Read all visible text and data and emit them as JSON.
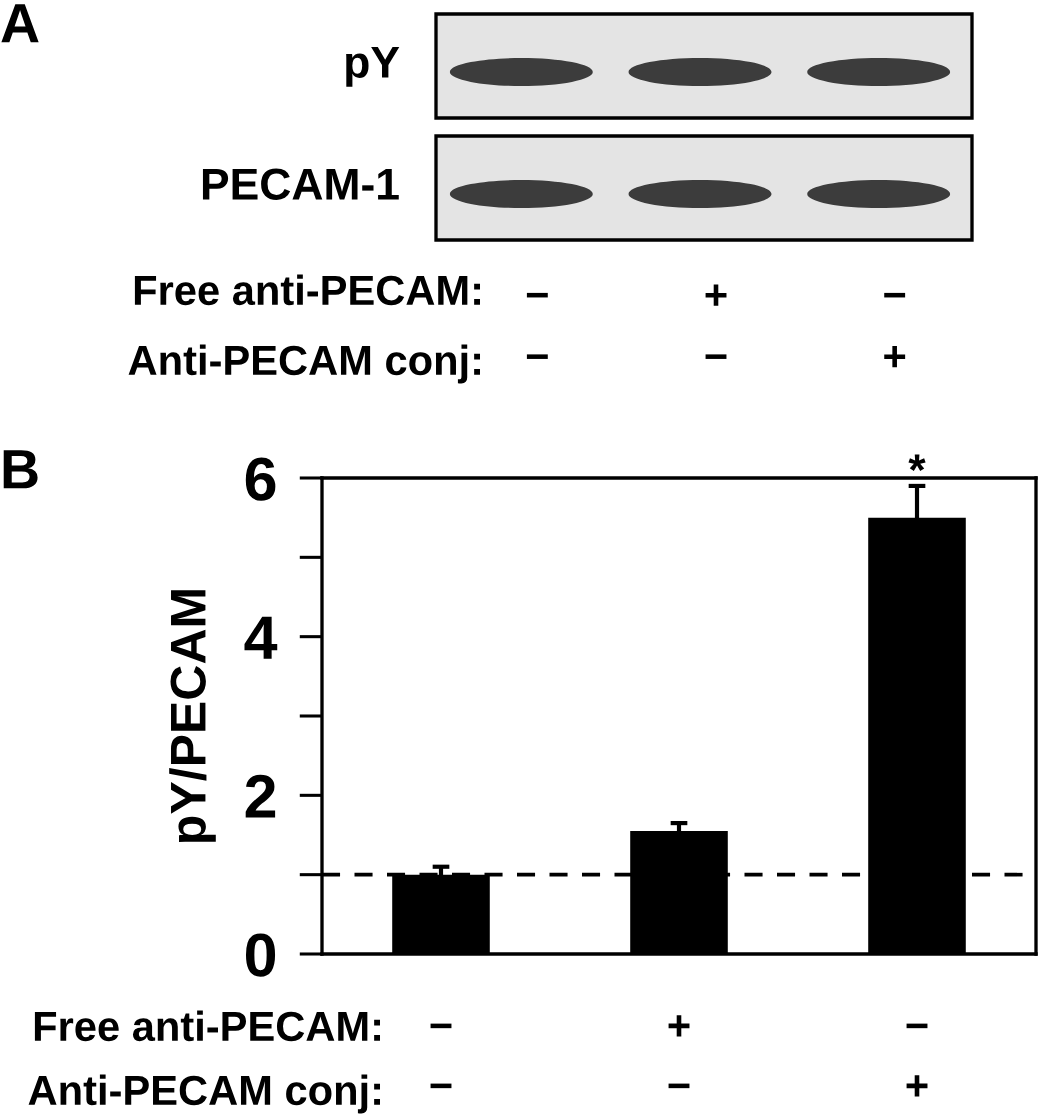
{
  "chart_data": [
    {
      "type": "other",
      "title": "A",
      "categories": [
        "−\n−",
        "+\n−",
        "−\n+"
      ],
      "y_categories": [
        "pY",
        "PECAM-1"
      ],
      "annotations": [
        "Free anti-PECAM:",
        "Anti-PECAM conj:"
      ]
    },
    {
      "type": "bar",
      "title": "B",
      "categories": [
        "−\n−",
        "+\n−",
        "−\n+"
      ],
      "values": [
        1.0,
        1.55,
        5.5
      ],
      "errors": [
        0.1,
        0.1,
        0.4
      ],
      "color": "#000000",
      "ylabel": "pY/PECAM",
      "ylim": [
        0,
        6
      ],
      "yticks": [
        0,
        {
          "value": 1,
          "label": null
        },
        2,
        {
          "value": 3,
          "label": null
        },
        4,
        {
          "value": 5,
          "label": null
        },
        6
      ],
      "ref_lines": [
        {
          "axis": "y",
          "value": 1,
          "color": "#000000",
          "line_style": "dashed"
        }
      ],
      "annotations": [
        "Free anti-PECAM:",
        "Anti-PECAM conj:",
        {
          "text": "*",
          "x": "−\n+",
          "y": 5.9
        }
      ]
    }
  ]
}
